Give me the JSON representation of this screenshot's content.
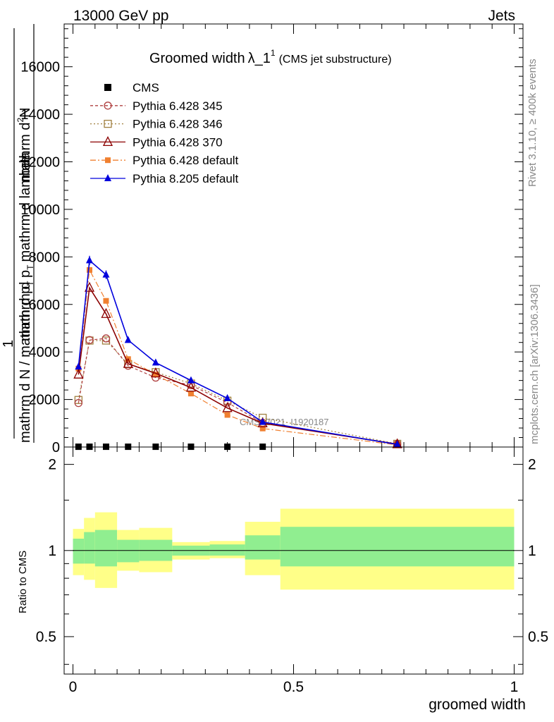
{
  "header": {
    "energy_label": "13000 GeV pp",
    "category_label": "Jets",
    "title_main": "Groomed width",
    "title_symbol": "λ_1",
    "title_superscript": "1",
    "title_sub": "(CMS jet substructure)",
    "side_left": "Rivet 3.1.10, ≥ 400k events",
    "side_right": "mcplots.cern.ch [arXiv:1306.3436]",
    "watermark": "CMS_2021_I1920187"
  },
  "chart_data": [
    {
      "type": "line",
      "panel": "main",
      "ylabel_numerator_top": "mathrm d",
      "ylabel_numerator_sup": "2",
      "ylabel_numerator_tail": "N",
      "ylabel_den": "mathrm d p",
      "ylabel_den_sub": "T",
      "ylabel_den_tail": "mathrm d lambda",
      "ylabel_frac_top": "1",
      "ylabel_frac_bottom": "mathrm d N / mathrm d p",
      "ylabel_frac_bottom_sub": "T",
      "ylim": [
        0,
        17800
      ],
      "yticks": [
        0,
        2000,
        4000,
        6000,
        8000,
        10000,
        12000,
        14000,
        16000
      ],
      "xlim": [
        -0.02,
        1.02
      ],
      "series": [
        {
          "name": "CMS",
          "style": "cms",
          "color": "#000000",
          "x": [
            0.0125,
            0.0375,
            0.075,
            0.125,
            0.1875,
            0.2675,
            0.35,
            0.43
          ],
          "y": [
            12,
            12,
            12,
            12,
            12,
            12,
            12,
            12
          ]
        },
        {
          "name": "Pythia 6.428 345",
          "style": "p345",
          "color": "#b04040",
          "x": [
            0.0125,
            0.0375,
            0.075,
            0.125,
            0.1875,
            0.2675,
            0.35,
            0.43,
            0.735
          ],
          "y": [
            1850,
            4500,
            4570,
            3420,
            2920,
            2600,
            1870,
            1020,
            125
          ]
        },
        {
          "name": "Pythia 6.428 346",
          "style": "p346",
          "color": "#a08040",
          "x": [
            0.0125,
            0.0375,
            0.075,
            0.125,
            0.1875,
            0.2675,
            0.35,
            0.43,
            0.735
          ],
          "y": [
            1980,
            4480,
            4480,
            3490,
            3150,
            2670,
            1950,
            1230,
            135
          ]
        },
        {
          "name": "Pythia 6.428 370",
          "style": "p370",
          "color": "#8b0000",
          "x": [
            0.0125,
            0.0375,
            0.075,
            0.125,
            0.1875,
            0.2675,
            0.35,
            0.43,
            0.735
          ],
          "y": [
            3050,
            6700,
            5600,
            3500,
            3100,
            2500,
            1640,
            1000,
            120
          ]
        },
        {
          "name": "Pythia 6.428 default",
          "style": "p6def",
          "color": "#f08030",
          "x": [
            0.0125,
            0.0375,
            0.075,
            0.125,
            0.1875,
            0.2675,
            0.35,
            0.43,
            0.735
          ],
          "y": [
            3300,
            7450,
            6150,
            3700,
            3050,
            2250,
            1350,
            780,
            90
          ]
        },
        {
          "name": "Pythia 8.205 default",
          "style": "p8def",
          "color": "#0000dd",
          "x": [
            0.0125,
            0.0375,
            0.075,
            0.125,
            0.1875,
            0.2675,
            0.35,
            0.43,
            0.735
          ],
          "y": [
            3380,
            7850,
            7250,
            4500,
            3550,
            2800,
            2050,
            1050,
            110
          ]
        }
      ]
    },
    {
      "type": "area",
      "panel": "ratio",
      "ylabel": "Ratio to CMS",
      "ylim": [
        0.37,
        2.3
      ],
      "yticks": [
        0.5,
        1,
        2
      ],
      "ytick_labels": [
        "0.5",
        "1",
        "2"
      ],
      "xlim": [
        -0.02,
        1.02
      ],
      "xticks": [
        0,
        0.5,
        1
      ],
      "xtick_labels": [
        "0",
        "0.5",
        "1"
      ],
      "xlabel": "groomed width",
      "bins": [
        {
          "x0": 0.0,
          "x1": 0.025,
          "inner": [
            0.9,
            1.1
          ],
          "outer": [
            0.82,
            1.19
          ]
        },
        {
          "x0": 0.025,
          "x1": 0.05,
          "inner": [
            0.9,
            1.16
          ],
          "outer": [
            0.79,
            1.3
          ]
        },
        {
          "x0": 0.05,
          "x1": 0.1,
          "inner": [
            0.88,
            1.18
          ],
          "outer": [
            0.74,
            1.36
          ]
        },
        {
          "x0": 0.1,
          "x1": 0.15,
          "inner": [
            0.91,
            1.09
          ],
          "outer": [
            0.85,
            1.18
          ]
        },
        {
          "x0": 0.15,
          "x1": 0.225,
          "inner": [
            0.92,
            1.09
          ],
          "outer": [
            0.84,
            1.2
          ]
        },
        {
          "x0": 0.225,
          "x1": 0.31,
          "inner": [
            0.96,
            1.04
          ],
          "outer": [
            0.93,
            1.07
          ]
        },
        {
          "x0": 0.31,
          "x1": 0.39,
          "inner": [
            0.96,
            1.05
          ],
          "outer": [
            0.94,
            1.08
          ]
        },
        {
          "x0": 0.39,
          "x1": 0.47,
          "inner": [
            0.93,
            1.13
          ],
          "outer": [
            0.82,
            1.26
          ]
        },
        {
          "x0": 0.47,
          "x1": 1.0,
          "inner": [
            0.88,
            1.21
          ],
          "outer": [
            0.73,
            1.4
          ]
        }
      ],
      "reference_line": 1.0
    }
  ],
  "colors": {
    "band_inner": "#90ee90",
    "band_outer": "#ffff88"
  }
}
